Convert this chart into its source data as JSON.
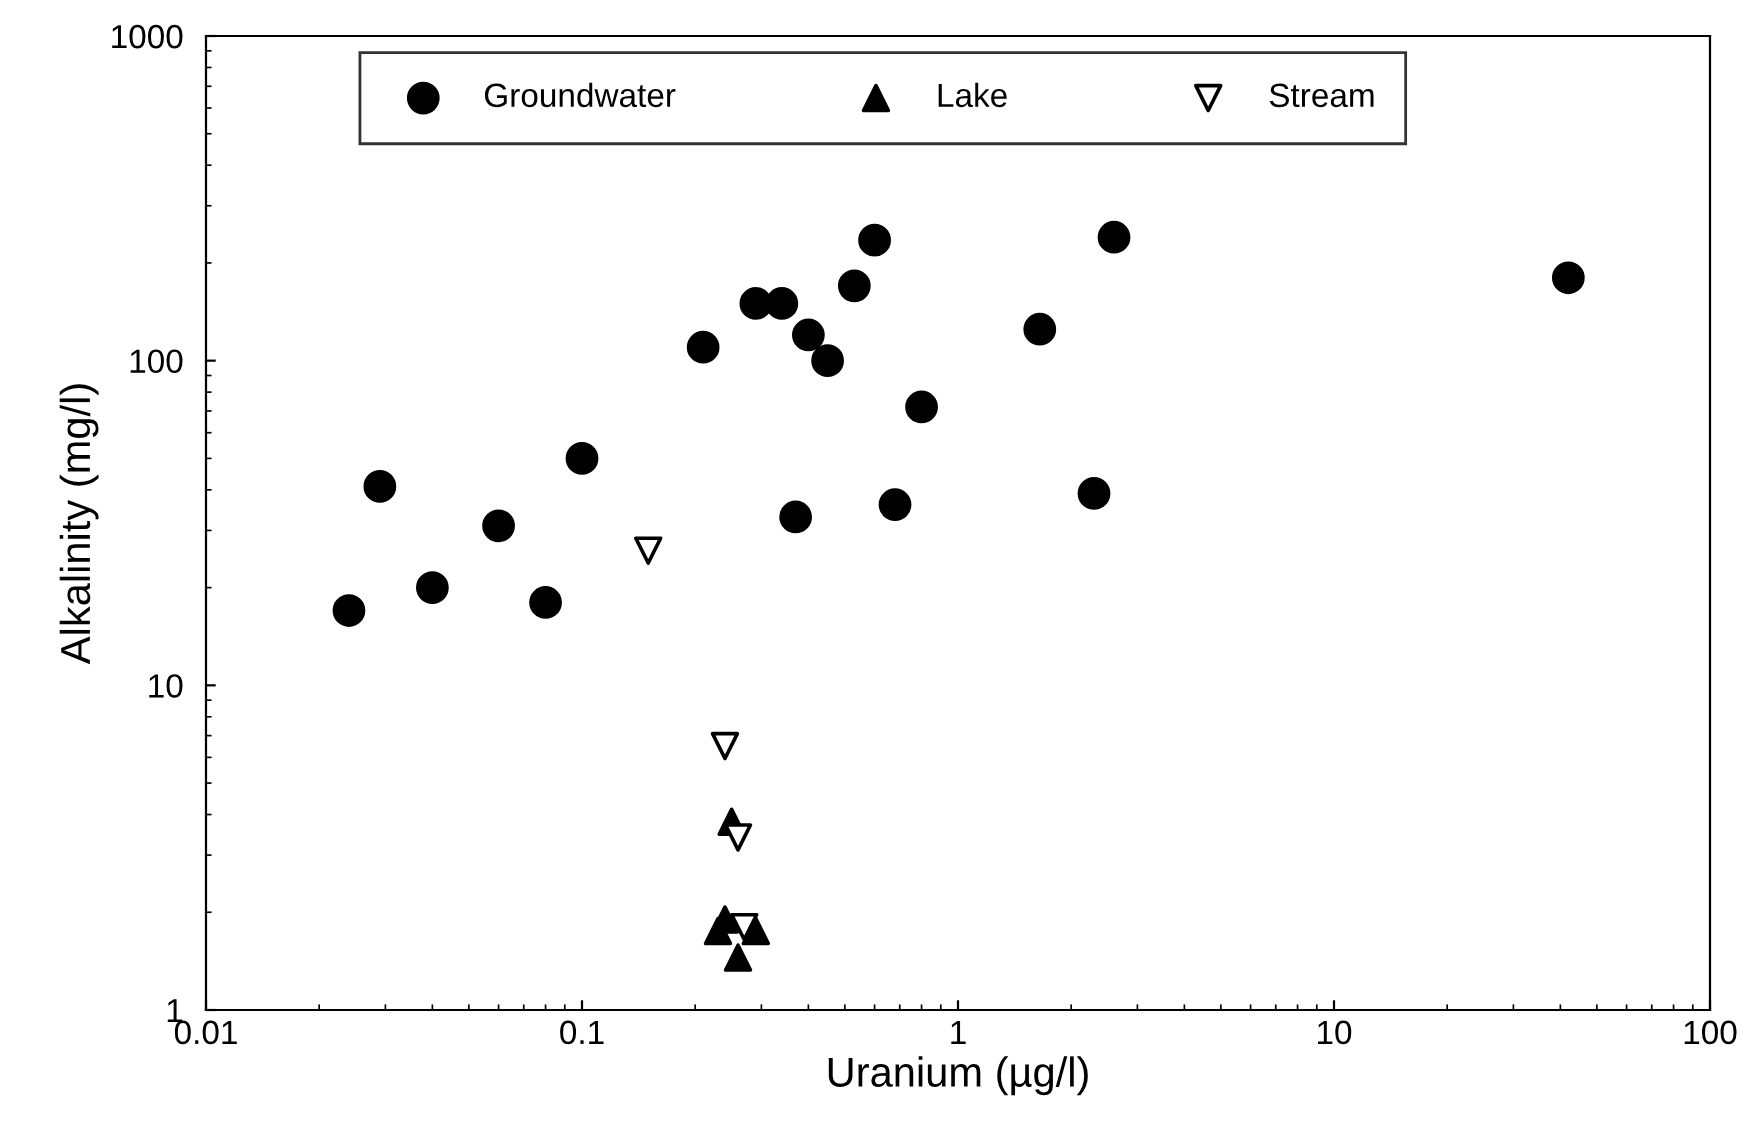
{
  "chart_data": {
    "type": "scatter",
    "xlabel": "Uranium (µg/l)",
    "ylabel": "Alkalinity (mg/l)",
    "log": "xy",
    "xlim": [
      0.01,
      100
    ],
    "xticks": [
      0.01,
      0.1,
      1,
      10,
      100
    ],
    "ylim": [
      1,
      1000
    ],
    "yticks": [
      1,
      10,
      100,
      1000
    ],
    "grid": false,
    "legend": "top",
    "series": [
      {
        "name": "Groundwater",
        "color": "#000000",
        "marker": "circle",
        "x": [
          0.024,
          0.029,
          0.04,
          0.06,
          0.08,
          0.1,
          0.21,
          0.29,
          0.34,
          0.37,
          0.4,
          0.45,
          0.53,
          0.6,
          0.68,
          0.8,
          1.65,
          2.3,
          2.6,
          42
        ],
        "values": [
          17,
          41,
          20,
          31,
          18,
          50,
          110,
          150,
          150,
          33,
          120,
          100,
          170,
          235,
          36,
          72,
          125,
          39,
          240,
          180
        ]
      },
      {
        "name": "Lake",
        "color": "#000000",
        "marker": "triangle",
        "x": [
          0.25,
          0.24,
          0.23,
          0.29,
          0.26
        ],
        "values": [
          3.8,
          1.9,
          1.75,
          1.75,
          1.45
        ]
      },
      {
        "name": "Stream",
        "color": "#ffffff",
        "marker": "triangle_down",
        "x": [
          0.15,
          0.24,
          0.26,
          0.27
        ],
        "values": [
          26,
          6.5,
          3.4,
          1.8
        ]
      }
    ]
  }
}
